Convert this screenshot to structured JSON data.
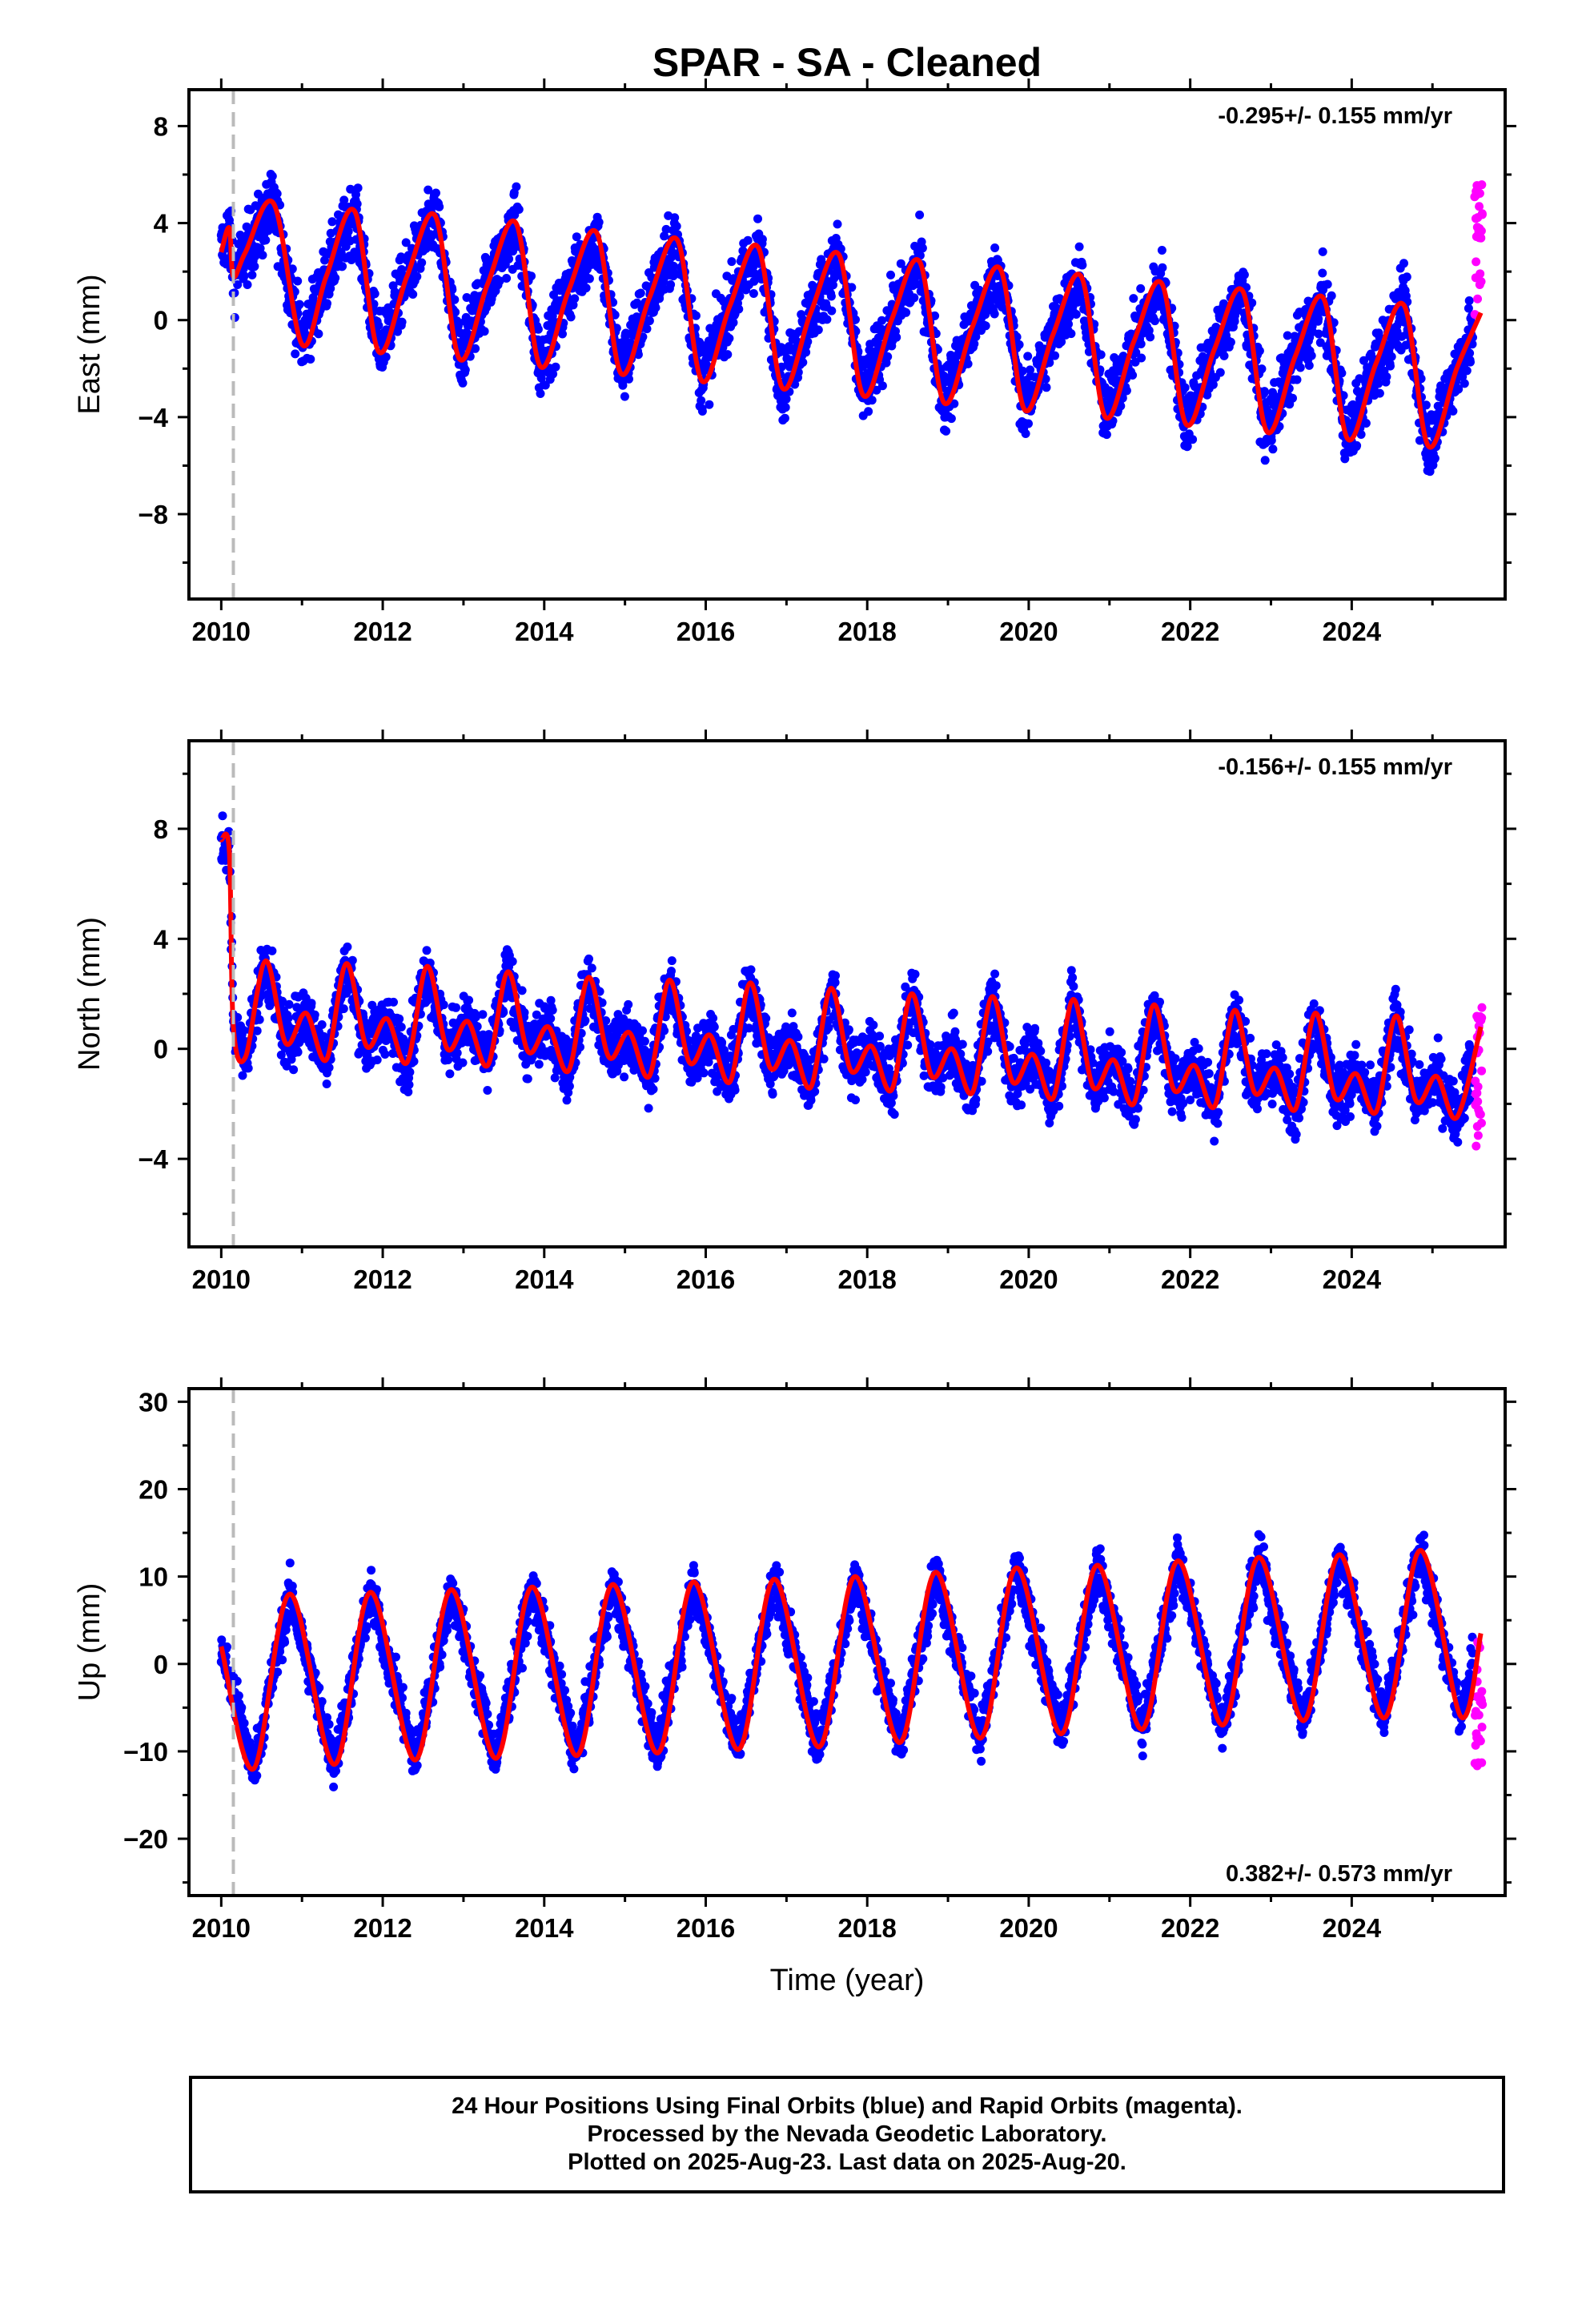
{
  "title": "SPAR  - SA - Cleaned",
  "footer": {
    "line1": "24 Hour Positions Using Final Orbits (blue) and Rapid Orbits (magenta).",
    "line2": "Processed by the Nevada Geodetic Laboratory.",
    "line3": "Plotted on 2025-Aug-23. Last data on 2025-Aug-20."
  },
  "colors": {
    "final": "#0000ff",
    "rapid": "#ff00ff",
    "model": "#ff0000",
    "marker": "#bbbbbb"
  },
  "chart_data": [
    {
      "type": "scatter",
      "component": "East",
      "ylabel": "East (mm)",
      "xlabel": "",
      "xlim": [
        2009.6,
        2025.9
      ],
      "ylim": [
        -11.5,
        9.5
      ],
      "xticks": [
        2010,
        2012,
        2014,
        2016,
        2018,
        2020,
        2022,
        2024
      ],
      "yticks": [
        8,
        4,
        0,
        -4,
        -8
      ],
      "ytick_labels": [
        "8",
        "4",
        "0",
        "−4",
        "−8"
      ],
      "rate_text": "-0.295+/- 0.155 mm/yr",
      "rate_position": "top-right",
      "marker_line_x": 2010.15,
      "model": {
        "x": [
          2010.0,
          2010.1,
          2010.15,
          2010.3,
          2010.65,
          2011.0,
          2011.3,
          2011.65,
          2011.95,
          2012.3,
          2012.65,
          2012.95,
          2013.3,
          2013.65,
          2013.95,
          2014.3,
          2014.65,
          2014.95,
          2015.3,
          2015.65,
          2015.95,
          2016.3,
          2016.65,
          2016.95,
          2017.3,
          2017.65,
          2017.95,
          2018.3,
          2018.65,
          2018.95,
          2019.3,
          2019.65,
          2019.95,
          2020.3,
          2020.65,
          2020.95,
          2021.3,
          2021.65,
          2021.95,
          2022.3,
          2022.65,
          2022.95,
          2023.3,
          2023.65,
          2023.95,
          2024.3,
          2024.65,
          2024.95,
          2025.3,
          2025.6
        ],
        "y": [
          2.8,
          3.8,
          1.8,
          2.8,
          4.8,
          -1.0,
          1.8,
          4.5,
          -1.3,
          1.8,
          4.3,
          -1.6,
          1.5,
          4.0,
          -1.9,
          1.2,
          3.6,
          -2.2,
          0.9,
          3.3,
          -2.5,
          0.6,
          3.0,
          -2.8,
          0.3,
          2.7,
          -3.1,
          0.0,
          2.4,
          -3.4,
          -0.3,
          2.1,
          -3.7,
          -0.6,
          1.8,
          -4.0,
          -0.9,
          1.5,
          -4.3,
          -1.2,
          1.2,
          -4.6,
          -1.5,
          0.9,
          -4.9,
          -1.8,
          0.6,
          -5.2,
          -2.0,
          0.3
        ]
      },
      "scatter": {
        "amplitude": 4.0,
        "noise": 1.8,
        "rapid_range": [
          0.0,
          5.8
        ]
      }
    },
    {
      "type": "scatter",
      "component": "North",
      "ylabel": "North (mm)",
      "xlabel": "",
      "xlim": [
        2009.6,
        2025.9
      ],
      "ylim": [
        -7.2,
        11.2
      ],
      "xticks": [
        2010,
        2012,
        2014,
        2016,
        2018,
        2020,
        2022,
        2024
      ],
      "yticks": [
        8,
        4,
        0,
        -4
      ],
      "ytick_labels": [
        "8",
        "4",
        "0",
        "−4"
      ],
      "rate_text": "-0.156+/- 0.155 mm/yr",
      "rate_position": "top-right",
      "marker_line_x": 2010.15,
      "model": {
        "x": [
          2010.0,
          2010.1,
          2010.15,
          2010.3,
          2010.55,
          2010.8,
          2011.05,
          2011.3,
          2011.55,
          2011.8,
          2012.05,
          2012.3,
          2012.55,
          2012.8,
          2013.05,
          2013.3,
          2013.55,
          2013.8,
          2014.05,
          2014.3,
          2014.55,
          2014.8,
          2015.05,
          2015.3,
          2015.55,
          2015.8,
          2016.05,
          2016.3,
          2016.55,
          2016.8,
          2017.05,
          2017.3,
          2017.55,
          2017.8,
          2018.05,
          2018.3,
          2018.55,
          2018.8,
          2019.05,
          2019.3,
          2019.55,
          2019.8,
          2020.05,
          2020.3,
          2020.55,
          2020.8,
          2021.05,
          2021.3,
          2021.55,
          2021.8,
          2022.05,
          2022.3,
          2022.55,
          2022.8,
          2023.05,
          2023.3,
          2023.55,
          2023.8,
          2024.05,
          2024.3,
          2024.55,
          2024.8,
          2025.05,
          2025.3,
          2025.6
        ],
        "y": [
          7.6,
          7.2,
          0.8,
          -0.3,
          3.2,
          0.2,
          1.3,
          -0.4,
          3.1,
          0.1,
          1.1,
          -0.5,
          3.0,
          0.0,
          1.0,
          -0.6,
          2.8,
          -0.1,
          0.8,
          -0.8,
          2.6,
          -0.3,
          0.6,
          -1.0,
          2.5,
          -0.5,
          0.5,
          -1.2,
          2.4,
          -0.7,
          0.3,
          -1.4,
          2.2,
          -0.8,
          0.1,
          -1.5,
          2.0,
          -1.0,
          0.0,
          -1.6,
          1.9,
          -1.2,
          -0.2,
          -1.8,
          1.8,
          -1.4,
          -0.4,
          -2.0,
          1.6,
          -1.5,
          -0.6,
          -2.1,
          1.4,
          -1.6,
          -0.7,
          -2.2,
          1.3,
          -1.8,
          -0.9,
          -2.3,
          1.2,
          -1.9,
          -1.0,
          -2.5,
          0.8
        ]
      },
      "scatter": {
        "amplitude": 2.0,
        "noise": 1.4,
        "rapid_range": [
          -3.6,
          1.8
        ]
      }
    },
    {
      "type": "scatter",
      "component": "Up",
      "ylabel": "Up (mm)",
      "xlabel": "Time (year)",
      "xlim": [
        2009.6,
        2025.9
      ],
      "ylim": [
        -26.5,
        31.5
      ],
      "xticks": [
        2010,
        2012,
        2014,
        2016,
        2018,
        2020,
        2022,
        2024
      ],
      "yticks": [
        30,
        20,
        10,
        0,
        -10,
        -20
      ],
      "ytick_labels": [
        "30",
        "20",
        "10",
        "0",
        "−10",
        "−20"
      ],
      "rate_text": "0.382+/- 0.573 mm/yr",
      "rate_position": "bottom-right",
      "marker_line_x": 2010.15,
      "model": {
        "x": [
          2010.0,
          2010.4,
          2010.85,
          2011.4,
          2011.85,
          2012.4,
          2012.85,
          2013.4,
          2013.85,
          2014.4,
          2014.85,
          2015.4,
          2015.85,
          2016.4,
          2016.85,
          2017.4,
          2017.85,
          2018.4,
          2018.85,
          2019.4,
          2019.85,
          2020.4,
          2020.85,
          2021.4,
          2021.85,
          2022.4,
          2022.85,
          2023.4,
          2023.85,
          2024.4,
          2024.85,
          2025.35,
          2025.6
        ],
        "y": [
          2.0,
          -12.0,
          8.0,
          -11.5,
          8.2,
          -11.0,
          8.5,
          -10.8,
          8.8,
          -10.5,
          9.1,
          -10.2,
          9.4,
          -9.8,
          9.7,
          -9.5,
          10.0,
          -9.0,
          10.5,
          -8.5,
          11.0,
          -8.0,
          11.3,
          -7.5,
          11.8,
          -7.0,
          12.2,
          -6.5,
          12.5,
          -6.2,
          13.0,
          -6.0,
          3.5
        ]
      },
      "scatter": {
        "amplitude": 10.0,
        "noise": 3.5,
        "rapid_range": [
          -11.8,
          3.5
        ]
      }
    }
  ]
}
